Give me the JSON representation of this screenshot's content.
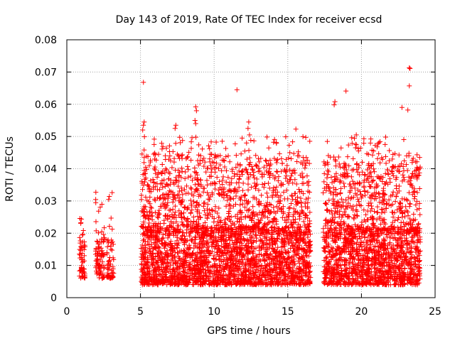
{
  "chart_data": {
    "type": "scatter",
    "title": "Day 143 of 2019, Rate Of TEC Index for receiver ecsd",
    "xlabel": "GPS time / hours",
    "ylabel": "ROTI / TECUs",
    "xlim": [
      0,
      25
    ],
    "ylim": [
      0,
      0.08
    ],
    "xticks": [
      "0",
      "5",
      "10",
      "15",
      "20",
      "25"
    ],
    "yticks": [
      "0",
      "0.01",
      "0.02",
      "0.03",
      "0.04",
      "0.05",
      "0.06",
      "0.07",
      "0.08"
    ],
    "grid": true,
    "marker": "+",
    "color": "#ff0000",
    "series": [
      {
        "name": "ROTI",
        "clusters": [
          {
            "x_range": [
              0.85,
              1.25
            ],
            "y_base": [
              0.006,
              0.018
            ],
            "y_max": 0.026,
            "count": 60
          },
          {
            "x_range": [
              1.95,
              2.55
            ],
            "y_base": [
              0.006,
              0.02
            ],
            "y_max": 0.033,
            "count": 90
          },
          {
            "x_range": [
              2.7,
              3.2
            ],
            "y_base": [
              0.006,
              0.018
            ],
            "y_max": 0.033,
            "count": 60
          },
          {
            "x_range": [
              5.05,
              24.0
            ],
            "y_base": [
              0.004,
              0.022
            ],
            "y_max": 0.045,
            "count": 4200
          },
          {
            "x_range": [
              5.05,
              16.5
            ],
            "y_base": [
              0.02,
              0.04
            ],
            "y_max": 0.05,
            "count": 700
          },
          {
            "x_range": [
              17.5,
              24.0
            ],
            "y_base": [
              0.02,
              0.04
            ],
            "y_max": 0.05,
            "count": 400
          }
        ],
        "gap": [
          16.55,
          17.4
        ],
        "points": [
          [
            5.2,
            0.0668
          ],
          [
            5.25,
            0.0545
          ],
          [
            5.2,
            0.0535
          ],
          [
            5.15,
            0.052
          ],
          [
            7.4,
            0.0535
          ],
          [
            7.35,
            0.0525
          ],
          [
            7.5,
            0.0445
          ],
          [
            8.75,
            0.0592
          ],
          [
            8.8,
            0.058
          ],
          [
            8.7,
            0.055
          ],
          [
            8.75,
            0.054
          ],
          [
            11.55,
            0.0645
          ],
          [
            12.35,
            0.0545
          ],
          [
            12.3,
            0.0525
          ],
          [
            12.4,
            0.0505
          ],
          [
            11.9,
            0.0495
          ],
          [
            10.55,
            0.0485
          ],
          [
            12.2,
            0.048
          ],
          [
            15.55,
            0.0523
          ],
          [
            16.2,
            0.041
          ],
          [
            18.2,
            0.0608
          ],
          [
            18.15,
            0.0598
          ],
          [
            18.95,
            0.0641
          ],
          [
            19.65,
            0.0505
          ],
          [
            19.6,
            0.0465
          ],
          [
            19.8,
            0.0455
          ],
          [
            23.25,
            0.0713
          ],
          [
            23.3,
            0.0711
          ],
          [
            23.25,
            0.0657
          ],
          [
            22.75,
            0.059
          ],
          [
            23.15,
            0.0582
          ],
          [
            22.1,
            0.043
          ]
        ]
      }
    ]
  }
}
